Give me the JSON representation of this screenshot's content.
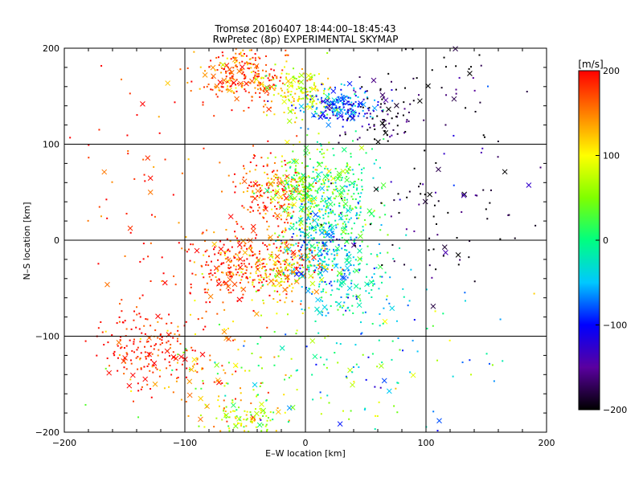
{
  "chart_data": {
    "type": "scatter",
    "title": "Tromsø 20160407 18:44:00–18:45:43",
    "subtitle": "RwPretec (8p) EXPERIMENTAL SKYMAP",
    "xlabel": "E–W location [km]",
    "ylabel": "N–S location [km]",
    "xlim": [
      -200,
      200
    ],
    "ylim": [
      -200,
      200
    ],
    "x_ticks": [
      -200,
      -100,
      0,
      100,
      200
    ],
    "y_ticks": [
      -200,
      -100,
      0,
      100,
      200
    ],
    "grid": true,
    "colorbar": {
      "label": "[m/s]",
      "min": -200,
      "max": 200,
      "ticks": [
        200,
        100,
        0,
        -100,
        -200
      ]
    },
    "clusters": [
      {
        "x": -50,
        "y": 170,
        "sx": 18,
        "sy": 15,
        "v": 170,
        "n": 260
      },
      {
        "x": -5,
        "y": 155,
        "sx": 14,
        "sy": 12,
        "v": 90,
        "n": 150
      },
      {
        "x": 30,
        "y": 140,
        "sx": 14,
        "sy": 10,
        "v": -80,
        "n": 200
      },
      {
        "x": 65,
        "y": 130,
        "sx": 18,
        "sy": 15,
        "v": -190,
        "n": 80
      },
      {
        "x": -30,
        "y": 50,
        "sx": 14,
        "sy": 20,
        "v": 170,
        "n": 180
      },
      {
        "x": -5,
        "y": 55,
        "sx": 12,
        "sy": 22,
        "v": 70,
        "n": 180
      },
      {
        "x": 25,
        "y": 40,
        "sx": 20,
        "sy": 25,
        "v": 10,
        "n": 320
      },
      {
        "x": 10,
        "y": 0,
        "sx": 14,
        "sy": 22,
        "v": -40,
        "n": 200
      },
      {
        "x": -50,
        "y": -25,
        "sx": 25,
        "sy": 18,
        "v": 185,
        "n": 320
      },
      {
        "x": -15,
        "y": -35,
        "sx": 14,
        "sy": 18,
        "v": 110,
        "n": 160
      },
      {
        "x": 30,
        "y": -40,
        "sx": 20,
        "sy": 22,
        "v": -30,
        "n": 180
      },
      {
        "x": -130,
        "y": -115,
        "sx": 22,
        "sy": 20,
        "v": 190,
        "n": 200
      },
      {
        "x": -70,
        "y": -130,
        "sx": 25,
        "sy": 35,
        "v": 150,
        "n": 80
      },
      {
        "x": -50,
        "y": -185,
        "sx": 14,
        "sy": 10,
        "v": 80,
        "n": 90
      },
      {
        "x": 110,
        "y": 40,
        "sx": 40,
        "sy": 40,
        "v": -190,
        "n": 90
      },
      {
        "x": 120,
        "y": 170,
        "sx": 30,
        "sy": 20,
        "v": -195,
        "n": 40
      },
      {
        "x": 0,
        "y": -140,
        "sx": 70,
        "sy": 40,
        "v": 40,
        "n": 120
      },
      {
        "x": -140,
        "y": 60,
        "sx": 40,
        "sy": 80,
        "v": 190,
        "n": 70
      },
      {
        "x": 70,
        "y": -130,
        "sx": 50,
        "sy": 50,
        "v": -60,
        "n": 70
      }
    ]
  }
}
